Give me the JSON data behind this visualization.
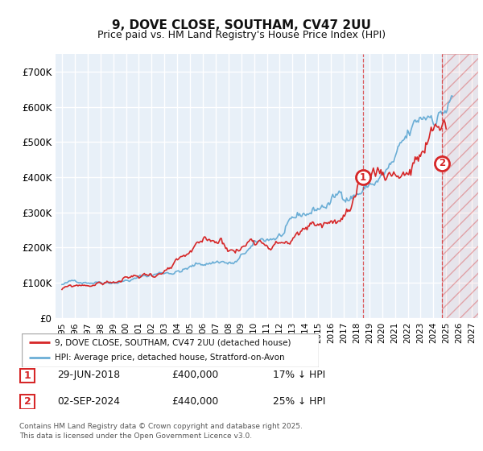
{
  "title": "9, DOVE CLOSE, SOUTHAM, CV47 2UU",
  "subtitle": "Price paid vs. HM Land Registry's House Price Index (HPI)",
  "background_color": "#ffffff",
  "plot_bg_color": "#e8f0f8",
  "grid_color": "#ffffff",
  "hpi_color": "#6baed6",
  "price_color": "#d62728",
  "ylim_min": 0,
  "ylim_max": 750000,
  "yticks": [
    0,
    100000,
    200000,
    300000,
    400000,
    500000,
    600000,
    700000
  ],
  "ytick_labels": [
    "£0",
    "£100K",
    "£200K",
    "£300K",
    "£400K",
    "£500K",
    "£600K",
    "£700K"
  ],
  "xlim_min": 1994.5,
  "xlim_max": 2027.5,
  "xticks": [
    1995,
    1996,
    1997,
    1998,
    1999,
    2000,
    2001,
    2002,
    2003,
    2004,
    2005,
    2006,
    2007,
    2008,
    2009,
    2010,
    2011,
    2012,
    2013,
    2014,
    2015,
    2016,
    2017,
    2018,
    2019,
    2020,
    2021,
    2022,
    2023,
    2024,
    2025,
    2026,
    2027
  ],
  "sale1_x": 2018.49,
  "sale1_y": 400000,
  "sale1_label": "1",
  "sale2_x": 2024.67,
  "sale2_y": 440000,
  "sale2_label": "2",
  "hatch_start_x": 2024.67,
  "legend_entries": [
    {
      "label": "9, DOVE CLOSE, SOUTHAM, CV47 2UU (detached house)",
      "color": "#d62728"
    },
    {
      "label": "HPI: Average price, detached house, Stratford-on-Avon",
      "color": "#6baed6"
    }
  ],
  "transaction_rows": [
    {
      "num": "1",
      "date": "29-JUN-2018",
      "price": "£400,000",
      "hpi": "17% ↓ HPI"
    },
    {
      "num": "2",
      "date": "02-SEP-2024",
      "price": "£440,000",
      "hpi": "25% ↓ HPI"
    }
  ],
  "footer": "Contains HM Land Registry data © Crown copyright and database right 2025.\nThis data is licensed under the Open Government Licence v3.0."
}
